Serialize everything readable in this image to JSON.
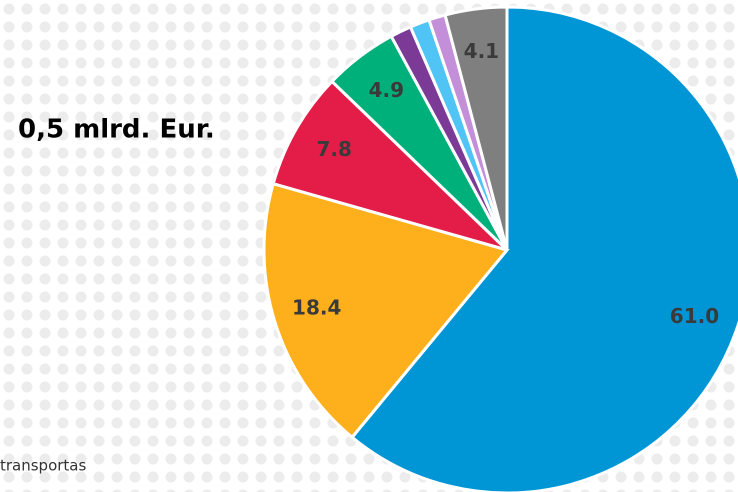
{
  "chart_data": {
    "type": "pie",
    "title": "0,5 mlrd. Eur.",
    "annotation": "transportas",
    "categories": [
      null,
      null,
      null,
      null,
      null,
      null,
      null,
      null
    ],
    "values": [
      61.0,
      18.4,
      7.8,
      4.9,
      1.4,
      1.3,
      1.1,
      4.1
    ],
    "value_labels": [
      "61.0",
      "18.4",
      "7.8",
      "4.9",
      null,
      null,
      null,
      "4.1"
    ],
    "colors": [
      "#0096d6",
      "#fdb01b",
      "#e31d48",
      "#00b07b",
      "#7b3a96",
      "#4fc4f5",
      "#c48fd9",
      "#7f7f7f"
    ]
  }
}
